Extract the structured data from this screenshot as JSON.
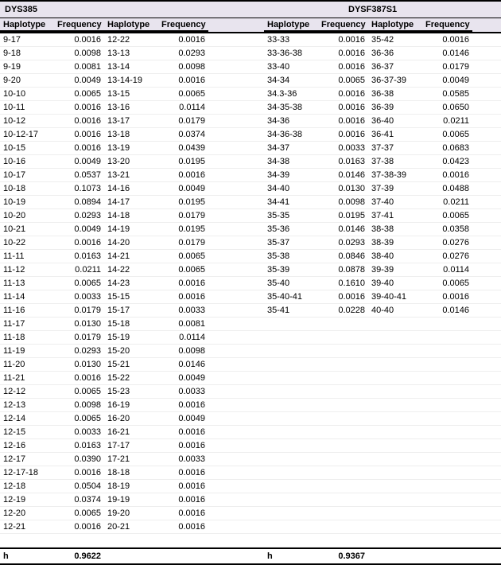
{
  "background_color": "#e8e4ee",
  "section1": {
    "title": "DYS385",
    "h_label": "h",
    "h_value": "0.9622",
    "colheaders": [
      "Haplotype",
      "Frequency",
      "Haplotype",
      "Frequency"
    ],
    "col1": [
      {
        "hap": "9-17",
        "freq": "0.0016"
      },
      {
        "hap": "9-18",
        "freq": "0.0098"
      },
      {
        "hap": "9-19",
        "freq": "0.0081"
      },
      {
        "hap": "9-20",
        "freq": "0.0049"
      },
      {
        "hap": "10-10",
        "freq": "0.0065"
      },
      {
        "hap": "10-11",
        "freq": "0.0016"
      },
      {
        "hap": "10-12",
        "freq": "0.0016"
      },
      {
        "hap": "10-12-17",
        "freq": "0.0016"
      },
      {
        "hap": "10-15",
        "freq": "0.0016"
      },
      {
        "hap": "10-16",
        "freq": "0.0049"
      },
      {
        "hap": "10-17",
        "freq": "0.0537"
      },
      {
        "hap": "10-18",
        "freq": "0.1073"
      },
      {
        "hap": "10-19",
        "freq": "0.0894"
      },
      {
        "hap": "10-20",
        "freq": "0.0293"
      },
      {
        "hap": "10-21",
        "freq": "0.0049"
      },
      {
        "hap": "10-22",
        "freq": "0.0016"
      },
      {
        "hap": "11-11",
        "freq": "0.0163"
      },
      {
        "hap": "11-12",
        "freq": "0.0211"
      },
      {
        "hap": "11-13",
        "freq": "0.0065"
      },
      {
        "hap": "11-14",
        "freq": "0.0033"
      },
      {
        "hap": "11-16",
        "freq": "0.0179"
      },
      {
        "hap": "11-17",
        "freq": "0.0130"
      },
      {
        "hap": "11-18",
        "freq": "0.0179"
      },
      {
        "hap": "11-19",
        "freq": "0.0293"
      },
      {
        "hap": "11-20",
        "freq": "0.0130"
      },
      {
        "hap": "11-21",
        "freq": "0.0016"
      },
      {
        "hap": "12-12",
        "freq": "0.0065"
      },
      {
        "hap": "12-13",
        "freq": "0.0098"
      },
      {
        "hap": "12-14",
        "freq": "0.0065"
      },
      {
        "hap": "12-15",
        "freq": "0.0033"
      },
      {
        "hap": "12-16",
        "freq": "0.0163"
      },
      {
        "hap": "12-17",
        "freq": "0.0390"
      },
      {
        "hap": "12-17-18",
        "freq": "0.0016"
      },
      {
        "hap": "12-18",
        "freq": "0.0504"
      },
      {
        "hap": "12-19",
        "freq": "0.0374"
      },
      {
        "hap": "12-20",
        "freq": "0.0065"
      },
      {
        "hap": "12-21",
        "freq": "0.0016"
      }
    ],
    "col2": [
      {
        "hap": "12-22",
        "freq": "0.0016"
      },
      {
        "hap": "13-13",
        "freq": "0.0293"
      },
      {
        "hap": "13-14",
        "freq": "0.0098"
      },
      {
        "hap": "13-14-19",
        "freq": "0.0016"
      },
      {
        "hap": "13-15",
        "freq": "0.0065"
      },
      {
        "hap": "13-16",
        "freq": "0.0114"
      },
      {
        "hap": "13-17",
        "freq": "0.0179"
      },
      {
        "hap": "13-18",
        "freq": "0.0374"
      },
      {
        "hap": "13-19",
        "freq": "0.0439"
      },
      {
        "hap": "13-20",
        "freq": "0.0195"
      },
      {
        "hap": "13-21",
        "freq": "0.0016"
      },
      {
        "hap": "14-16",
        "freq": "0.0049"
      },
      {
        "hap": "14-17",
        "freq": "0.0195"
      },
      {
        "hap": "14-18",
        "freq": "0.0179"
      },
      {
        "hap": "14-19",
        "freq": "0.0195"
      },
      {
        "hap": "14-20",
        "freq": "0.0179"
      },
      {
        "hap": "14-21",
        "freq": "0.0065"
      },
      {
        "hap": "14-22",
        "freq": "0.0065"
      },
      {
        "hap": "14-23",
        "freq": "0.0016"
      },
      {
        "hap": "15-15",
        "freq": "0.0016"
      },
      {
        "hap": "15-17",
        "freq": "0.0033"
      },
      {
        "hap": "15-18",
        "freq": "0.0081"
      },
      {
        "hap": "15-19",
        "freq": "0.0114"
      },
      {
        "hap": "15-20",
        "freq": "0.0098"
      },
      {
        "hap": "15-21",
        "freq": "0.0146"
      },
      {
        "hap": "15-22",
        "freq": "0.0049"
      },
      {
        "hap": "15-23",
        "freq": "0.0033"
      },
      {
        "hap": "16-19",
        "freq": "0.0016"
      },
      {
        "hap": "16-20",
        "freq": "0.0049"
      },
      {
        "hap": "16-21",
        "freq": "0.0016"
      },
      {
        "hap": "17-17",
        "freq": "0.0016"
      },
      {
        "hap": "17-21",
        "freq": "0.0033"
      },
      {
        "hap": "18-18",
        "freq": "0.0016"
      },
      {
        "hap": "18-19",
        "freq": "0.0016"
      },
      {
        "hap": "19-19",
        "freq": "0.0016"
      },
      {
        "hap": "19-20",
        "freq": "0.0016"
      },
      {
        "hap": "20-21",
        "freq": "0.0016"
      }
    ]
  },
  "section2": {
    "title": "DYSF387S1",
    "h_label": "h",
    "h_value": "0.9367",
    "colheaders": [
      "Haplotype",
      "Frequency",
      "Haplotype",
      "Frequency"
    ],
    "col1": [
      {
        "hap": "33-33",
        "freq": "0.0016"
      },
      {
        "hap": "33-36-38",
        "freq": "0.0016"
      },
      {
        "hap": "33-40",
        "freq": "0.0016"
      },
      {
        "hap": "34-34",
        "freq": "0.0065"
      },
      {
        "hap": "34.3-36",
        "freq": "0.0016"
      },
      {
        "hap": "34-35-38",
        "freq": "0.0016"
      },
      {
        "hap": "34-36",
        "freq": "0.0016"
      },
      {
        "hap": "34-36-38",
        "freq": "0.0016"
      },
      {
        "hap": "34-37",
        "freq": "0.0033"
      },
      {
        "hap": "34-38",
        "freq": "0.0163"
      },
      {
        "hap": "34-39",
        "freq": "0.0146"
      },
      {
        "hap": "34-40",
        "freq": "0.0130"
      },
      {
        "hap": "34-41",
        "freq": "0.0098"
      },
      {
        "hap": "35-35",
        "freq": "0.0195"
      },
      {
        "hap": "35-36",
        "freq": "0.0146"
      },
      {
        "hap": "35-37",
        "freq": "0.0293"
      },
      {
        "hap": "35-38",
        "freq": "0.0846"
      },
      {
        "hap": "35-39",
        "freq": "0.0878"
      },
      {
        "hap": "35-40",
        "freq": "0.1610"
      },
      {
        "hap": "35-40-41",
        "freq": "0.0016"
      },
      {
        "hap": "35-41",
        "freq": "0.0228"
      }
    ],
    "col2": [
      {
        "hap": "35-42",
        "freq": "0.0016"
      },
      {
        "hap": "36-36",
        "freq": "0.0146"
      },
      {
        "hap": "36-37",
        "freq": "0.0179"
      },
      {
        "hap": "36-37-39",
        "freq": "0.0049"
      },
      {
        "hap": "36-38",
        "freq": "0.0585"
      },
      {
        "hap": "36-39",
        "freq": "0.0650"
      },
      {
        "hap": "36-40",
        "freq": "0.0211"
      },
      {
        "hap": "36-41",
        "freq": "0.0065"
      },
      {
        "hap": "37-37",
        "freq": "0.0683"
      },
      {
        "hap": "37-38",
        "freq": "0.0423"
      },
      {
        "hap": "37-38-39",
        "freq": "0.0016"
      },
      {
        "hap": "37-39",
        "freq": "0.0488"
      },
      {
        "hap": "37-40",
        "freq": "0.0211"
      },
      {
        "hap": "37-41",
        "freq": "0.0065"
      },
      {
        "hap": "38-38",
        "freq": "0.0358"
      },
      {
        "hap": "38-39",
        "freq": "0.0276"
      },
      {
        "hap": "38-40",
        "freq": "0.0276"
      },
      {
        "hap": "39-39",
        "freq": "0.0114"
      },
      {
        "hap": "39-40",
        "freq": "0.0065"
      },
      {
        "hap": "39-40-41",
        "freq": "0.0016"
      },
      {
        "hap": "40-40",
        "freq": "0.0146"
      }
    ]
  },
  "total_rows": 37
}
